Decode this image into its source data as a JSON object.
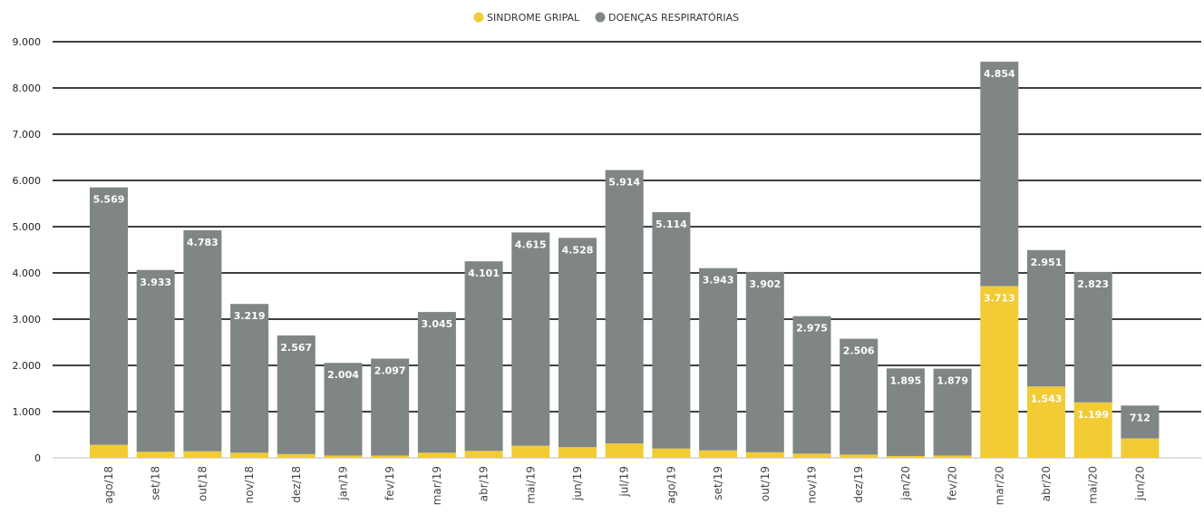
{
  "chart_data": {
    "type": "bar",
    "stacked": true,
    "legend_position": "top-center",
    "grid": true,
    "title": "",
    "xlabel": "",
    "ylabel": "",
    "ylim": [
      0,
      9000
    ],
    "y_ticks": [
      "0",
      "1.000",
      "2.000",
      "3.000",
      "4.000",
      "5.000",
      "6.000",
      "7.000",
      "8.000",
      "9.000"
    ],
    "categories": [
      "ago/18",
      "set/18",
      "out/18",
      "nov/18",
      "dez/18",
      "jan/19",
      "fev/19",
      "mar/19",
      "abr/19",
      "mai/19",
      "jun/19",
      "jul/19",
      "ago/19",
      "set/19",
      "out/19",
      "nov/19",
      "dez/19",
      "jan/20",
      "fev/20",
      "mar/20",
      "abr/20",
      "mai/20",
      "jun/20"
    ],
    "series": [
      {
        "name": "SINDROME GRIPAL",
        "color": "#F2CC35",
        "values": [
          280,
          130,
          140,
          110,
          80,
          50,
          50,
          110,
          150,
          260,
          230,
          310,
          200,
          160,
          120,
          90,
          70,
          40,
          50,
          3713,
          1543,
          1199,
          420
        ],
        "labels": [
          "",
          "",
          "",
          "",
          "",
          "",
          "",
          "",
          "",
          "",
          "",
          "",
          "",
          "",
          "",
          "",
          "",
          "",
          "",
          "3.713",
          "1.543",
          "1.199",
          ""
        ]
      },
      {
        "name": "DOENÇAS RESPIRATÓRIAS",
        "color": "#7F8685",
        "values": [
          5569,
          3933,
          4783,
          3219,
          2567,
          2004,
          2097,
          3045,
          4101,
          4615,
          4528,
          5914,
          5114,
          3943,
          3902,
          2975,
          2506,
          1895,
          1879,
          4854,
          2951,
          2823,
          712
        ],
        "labels": [
          "5.569",
          "3.933",
          "4.783",
          "3.219",
          "2.567",
          "2.004",
          "2.097",
          "3.045",
          "4.101",
          "4.615",
          "4.528",
          "5.914",
          "5.114",
          "3.943",
          "3.902",
          "2.975",
          "2.506",
          "1.895",
          "1.879",
          "4.854",
          "2.951",
          "2.823",
          "712"
        ]
      }
    ]
  }
}
